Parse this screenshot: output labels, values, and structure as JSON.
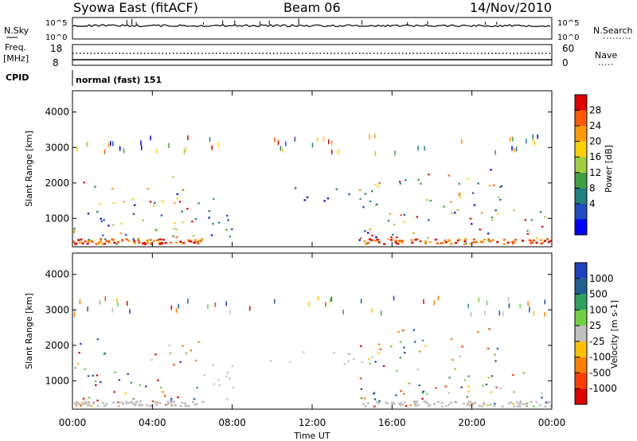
{
  "header": {
    "station": "Syowa East (fitACF)",
    "beam": "Beam 06",
    "date": "14/Nov/2010"
  },
  "strips": {
    "nsky_label": "N.Sky",
    "nsky_ticks": [
      "10^5",
      "10^0"
    ],
    "nsearch_label": "N.Search",
    "nsearch_ticks": [
      "10^5",
      "10^0"
    ],
    "freq_label": "Freq.",
    "freq_unit": "[MHz]",
    "freq_ticks": [
      "18",
      "8"
    ],
    "nave_label": "Nave",
    "nave_ticks": [
      "60",
      "0"
    ],
    "cpid_label": "CPID",
    "cpid_text": "normal (fast) 151"
  },
  "chart_data": [
    {
      "type": "heatmap",
      "name": "power",
      "ylabel": "Slant Range [km]",
      "xlabel": "",
      "x_ticks": [
        "00:00",
        "04:00",
        "08:00",
        "12:00",
        "16:00",
        "20:00",
        "00:00"
      ],
      "y_ticks": [
        "1000",
        "2000",
        "3000",
        "4000"
      ],
      "ylim": [
        200,
        4600
      ],
      "xlim_hours": [
        0,
        24
      ],
      "colorbar": {
        "label": "Power [dB]",
        "ticks": [
          "28",
          "24",
          "20",
          "16",
          "12",
          "8",
          "4"
        ],
        "colors": [
          "#e00000",
          "#ff5a00",
          "#ff9a00",
          "#ffd000",
          "#a0d040",
          "#40a040",
          "#208080",
          "#1d4fc0",
          "#0000ff"
        ]
      },
      "regions": [
        {
          "from_h": 0.0,
          "to_h": 6.3,
          "from_km": 300,
          "to_km": 2200,
          "intensity": "mixed"
        },
        {
          "from_h": 6.3,
          "to_h": 8.3,
          "from_km": 500,
          "to_km": 1600,
          "intensity": "low"
        },
        {
          "from_h": 9.5,
          "to_h": 15.0,
          "from_km": 1500,
          "to_km": 1900,
          "intensity": "low"
        },
        {
          "from_h": 14.3,
          "to_h": 21.5,
          "from_km": 300,
          "to_km": 2500,
          "intensity": "mixed"
        },
        {
          "from_h": 22.0,
          "to_h": 24.0,
          "from_km": 300,
          "to_km": 1300,
          "intensity": "mixed"
        }
      ]
    },
    {
      "type": "heatmap",
      "name": "velocity",
      "ylabel": "Slant Range [km]",
      "xlabel": "Time UT",
      "x_ticks": [
        "00:00",
        "04:00",
        "08:00",
        "12:00",
        "16:00",
        "20:00",
        "00:00"
      ],
      "y_ticks": [
        "1000",
        "2000",
        "3000",
        "4000"
      ],
      "ylim": [
        200,
        4600
      ],
      "xlim_hours": [
        0,
        24
      ],
      "colorbar": {
        "label": "Velocity [m s-1]",
        "ticks": [
          "1000",
          "500",
          "100",
          "25",
          "-25",
          "-100",
          "-500",
          "-1000"
        ],
        "colors": [
          "#2040c0",
          "#206090",
          "#30a060",
          "#70d040",
          "#c0c0c0",
          "#ffc000",
          "#ff8000",
          "#ff4000",
          "#e00000"
        ]
      }
    }
  ],
  "colors": {
    "frame": "#000000",
    "background": "#ffffff"
  }
}
